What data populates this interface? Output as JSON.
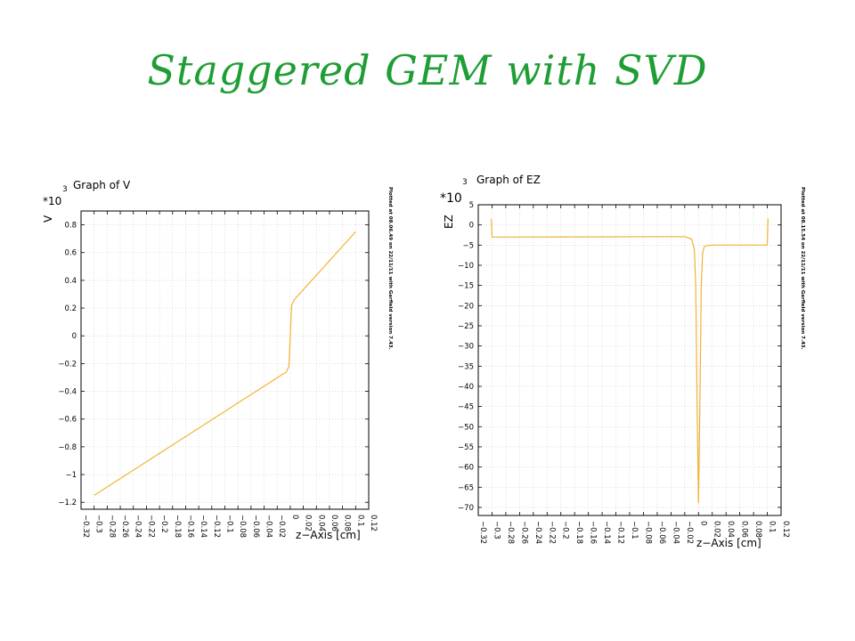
{
  "slide": {
    "title": "Staggered GEM with SVD"
  },
  "colors": {
    "title": "#1e9e35",
    "curve": "#f2b233",
    "grid": "#c8c8c8"
  },
  "chart_data": [
    {
      "type": "line",
      "title": "Graph of V",
      "xlabel": "z−Axis [cm]",
      "ylabel": "V",
      "ymultiplier": "*10",
      "ymultiplier_exp": "3",
      "footnote": "Plotted at 08.06.49 on 22/11/11 with Garfield version 7.43.",
      "xlim": [
        -0.32,
        0.12
      ],
      "ylim": [
        -1.25,
        0.9
      ],
      "xticks": [
        -0.32,
        -0.3,
        -0.28,
        -0.26,
        -0.24,
        -0.22,
        -0.2,
        -0.18,
        -0.16,
        -0.14,
        -0.12,
        -0.1,
        -0.08,
        -0.06,
        -0.04,
        -0.02,
        0,
        0.02,
        0.04,
        0.06,
        0.08,
        0.1,
        0.12
      ],
      "xtick_labels": [
        "−0.32",
        "−0.3",
        "−0.28",
        "−0.26",
        "−0.24",
        "−0.22",
        "−0.2",
        "−0.18",
        "−0.16",
        "−0.14",
        "−0.12",
        "−0.1",
        "−0.08",
        "−0.06",
        "−0.04",
        "−0.02",
        "0",
        "0.02",
        "0.04",
        "0.06",
        "0.08",
        "0.1",
        "0.12"
      ],
      "yticks": [
        -1.2,
        -1,
        -0.8,
        -0.6,
        -0.4,
        -0.2,
        0,
        0.2,
        0.4,
        0.6,
        0.8
      ],
      "ytick_labels": [
        "−1.2",
        "−1",
        "−0.8",
        "−0.6",
        "−0.4",
        "−0.2",
        "0",
        "0.2",
        "0.4",
        "0.6",
        "0.8"
      ],
      "grid": true,
      "series": [
        {
          "x": [
            -0.3,
            -0.006,
            -0.002,
            0.0,
            0.002,
            0.006,
            0.1
          ],
          "y": [
            -1.15,
            -0.26,
            -0.22,
            0.0,
            0.22,
            0.26,
            0.75
          ]
        }
      ]
    },
    {
      "type": "line",
      "title": "Graph of EZ",
      "xlabel": "z−Axis [cm]",
      "ylabel": "EZ",
      "ymultiplier": "*10",
      "ymultiplier_exp": "3",
      "footnote": "Plotted at 08.15.54 on 22/11/11 with Garfield version 7.43.",
      "xlim": [
        -0.32,
        0.12
      ],
      "ylim": [
        -72,
        5
      ],
      "xticks": [
        -0.32,
        -0.3,
        -0.28,
        -0.26,
        -0.24,
        -0.22,
        -0.2,
        -0.18,
        -0.16,
        -0.14,
        -0.12,
        -0.1,
        -0.08,
        -0.06,
        -0.04,
        -0.02,
        0,
        0.02,
        0.04,
        0.06,
        0.08,
        0.1,
        0.12
      ],
      "xtick_labels": [
        "−0.32",
        "−0.3",
        "−0.28",
        "−0.26",
        "−0.24",
        "−0.22",
        "−0.2",
        "−0.18",
        "−0.16",
        "−0.14",
        "−0.12",
        "−0.1",
        "−0.08",
        "−0.06",
        "−0.04",
        "−0.02",
        "0",
        "0.02",
        "0.04",
        "0.06",
        "0.08",
        "0.1",
        "0.12"
      ],
      "yticks": [
        5,
        0,
        -5,
        -10,
        -15,
        -20,
        -25,
        -30,
        -35,
        -40,
        -45,
        -50,
        -55,
        -60,
        -65,
        -70
      ],
      "ytick_labels": [
        "5",
        "0",
        "−5",
        "−10",
        "−15",
        "−20",
        "−25",
        "−30",
        "−35",
        "−40",
        "−45",
        "−50",
        "−55",
        "−60",
        "−65",
        "−70"
      ],
      "grid": true,
      "series": [
        {
          "x": [
            -0.301,
            -0.3,
            -0.3,
            -0.02,
            -0.01,
            -0.006,
            -0.004,
            -0.002,
            0,
            0.002,
            0.004,
            0.006,
            0.008,
            0.01,
            0.02,
            0.1,
            0.1,
            0.101
          ],
          "y": [
            1.5,
            -3,
            -3,
            -2.9,
            -3.5,
            -6,
            -15,
            -45,
            -69,
            -45,
            -15,
            -7,
            -5.5,
            -5.2,
            -5,
            -5,
            -5,
            1.5
          ]
        }
      ]
    }
  ]
}
